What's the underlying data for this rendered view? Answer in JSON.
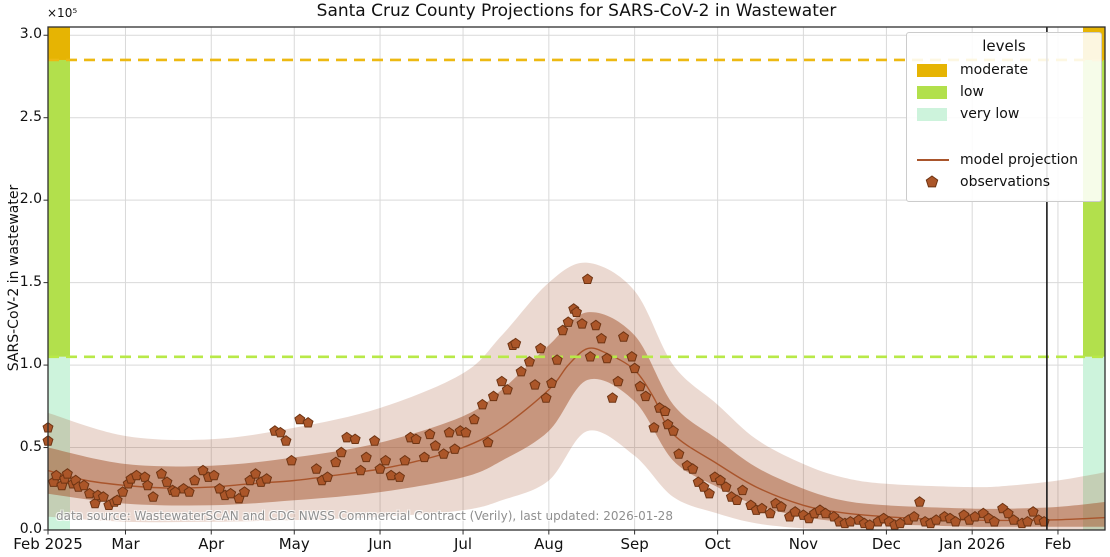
{
  "colors": {
    "moderate": "#e6b403",
    "low": "#b2e04c",
    "very_low": "#cdf3dc",
    "threshold_moderate": "#edb912",
    "threshold_low": "#b8e948",
    "model_line": "#a9552c",
    "marker": "#ab5629",
    "marker_edge": "#6e3413",
    "band_inner": "rgba(164,84,44,0.50)",
    "band_outer": "rgba(164,84,44,0.22)",
    "grid": "#d9d9d9",
    "spine": "#2e2e2e",
    "today_line": "#1a1a1a",
    "source_text": "#8f8f8f",
    "legend_border": "#cccccc"
  },
  "chart_data": {
    "type": "line",
    "title": "Santa Cruz County Projections for SARS-CoV-2 in Wastewater",
    "ylabel": "SARS-CoV-2 in wastewater",
    "y_offset_text": "×10⁵",
    "y_multiplier": 100000,
    "ylim": [
      0,
      3.05
    ],
    "grid": true,
    "x_domain": [
      "2025-02-01",
      "2026-02-18"
    ],
    "x_ticks": [
      {
        "date": "2025-02-01",
        "label": "Feb 2025"
      },
      {
        "date": "2025-03-01",
        "label": "Mar"
      },
      {
        "date": "2025-04-01",
        "label": "Apr"
      },
      {
        "date": "2025-05-01",
        "label": "May"
      },
      {
        "date": "2025-06-01",
        "label": "Jun"
      },
      {
        "date": "2025-07-01",
        "label": "Jul"
      },
      {
        "date": "2025-08-01",
        "label": "Aug"
      },
      {
        "date": "2025-09-01",
        "label": "Sep"
      },
      {
        "date": "2025-10-01",
        "label": "Oct"
      },
      {
        "date": "2025-11-01",
        "label": "Nov"
      },
      {
        "date": "2025-12-01",
        "label": "Dec"
      },
      {
        "date": "2026-01-01",
        "label": "Jan 2026"
      },
      {
        "date": "2026-02-01",
        "label": "Feb"
      }
    ],
    "y_ticks": [
      {
        "value": 0.0,
        "label": "0.0"
      },
      {
        "value": 0.5,
        "label": "0.5"
      },
      {
        "value": 1.0,
        "label": "1.0"
      },
      {
        "value": 1.5,
        "label": "1.5"
      },
      {
        "value": 2.0,
        "label": "2.0"
      },
      {
        "value": 2.5,
        "label": "2.5"
      },
      {
        "value": 3.0,
        "label": "3.0"
      }
    ],
    "levels": [
      {
        "name": "moderate",
        "from": 2.85,
        "to": 3.05,
        "color_key": "moderate"
      },
      {
        "name": "low",
        "from": 1.05,
        "to": 2.85,
        "color_key": "low"
      },
      {
        "name": "very low",
        "from": 0.0,
        "to": 1.05,
        "color_key": "very_low"
      }
    ],
    "thresholds": [
      {
        "name": "moderate-threshold",
        "value": 2.85,
        "color_key": "threshold_moderate"
      },
      {
        "name": "low-threshold",
        "value": 1.05,
        "color_key": "threshold_low"
      }
    ],
    "today_line": {
      "date": "2026-01-28"
    },
    "model_projection": {
      "dates": [
        "2025-02-01",
        "2025-02-15",
        "2025-03-01",
        "2025-03-15",
        "2025-04-01",
        "2025-04-15",
        "2025-05-01",
        "2025-05-15",
        "2025-06-01",
        "2025-06-15",
        "2025-07-01",
        "2025-07-15",
        "2025-08-01",
        "2025-08-08",
        "2025-08-15",
        "2025-08-22",
        "2025-09-01",
        "2025-09-08",
        "2025-09-15",
        "2025-10-01",
        "2025-10-15",
        "2025-11-01",
        "2025-11-15",
        "2025-12-01",
        "2025-12-15",
        "2026-01-01",
        "2026-01-15",
        "2026-02-01",
        "2026-02-18"
      ],
      "values": [
        0.36,
        0.3,
        0.27,
        0.255,
        0.26,
        0.28,
        0.3,
        0.33,
        0.37,
        0.42,
        0.5,
        0.62,
        0.85,
        1.0,
        1.1,
        1.07,
        0.97,
        0.8,
        0.58,
        0.4,
        0.26,
        0.15,
        0.105,
        0.08,
        0.068,
        0.06,
        0.058,
        0.062,
        0.075
      ]
    },
    "bands": {
      "dates": [
        "2025-02-01",
        "2025-03-01",
        "2025-04-01",
        "2025-05-01",
        "2025-06-01",
        "2025-07-01",
        "2025-07-15",
        "2025-08-01",
        "2025-08-15",
        "2025-09-01",
        "2025-09-15",
        "2025-10-01",
        "2025-10-15",
        "2025-11-01",
        "2025-11-15",
        "2025-12-01",
        "2026-01-01",
        "2026-01-15",
        "2026-02-01",
        "2026-02-18"
      ],
      "inner_hi": [
        0.5,
        0.4,
        0.39,
        0.44,
        0.53,
        0.69,
        0.85,
        1.12,
        1.32,
        1.18,
        0.76,
        0.55,
        0.38,
        0.25,
        0.18,
        0.15,
        0.13,
        0.13,
        0.14,
        0.17
      ],
      "inner_lo": [
        0.22,
        0.16,
        0.15,
        0.18,
        0.23,
        0.32,
        0.42,
        0.6,
        0.91,
        0.78,
        0.42,
        0.26,
        0.15,
        0.08,
        0.05,
        0.035,
        0.02,
        0.02,
        0.02,
        0.02
      ],
      "outer_hi": [
        0.71,
        0.57,
        0.55,
        0.62,
        0.74,
        0.95,
        1.18,
        1.5,
        1.62,
        1.45,
        1.0,
        0.76,
        0.55,
        0.4,
        0.32,
        0.28,
        0.26,
        0.27,
        0.3,
        0.35
      ],
      "outer_lo": [
        0.08,
        0.05,
        0.05,
        0.06,
        0.08,
        0.12,
        0.18,
        0.3,
        0.6,
        0.45,
        0.2,
        0.1,
        0.04,
        0.01,
        0.005,
        0.0,
        0.0,
        0.0,
        0.0,
        0.0
      ]
    },
    "observations": [
      [
        "2025-02-01",
        0.62
      ],
      [
        "2025-02-01",
        0.54
      ],
      [
        "2025-02-03",
        0.29
      ],
      [
        "2025-02-04",
        0.33
      ],
      [
        "2025-02-06",
        0.27
      ],
      [
        "2025-02-07",
        0.31
      ],
      [
        "2025-02-08",
        0.34
      ],
      [
        "2025-02-10",
        0.28
      ],
      [
        "2025-02-11",
        0.3
      ],
      [
        "2025-02-12",
        0.26
      ],
      [
        "2025-02-14",
        0.27
      ],
      [
        "2025-02-16",
        0.22
      ],
      [
        "2025-02-18",
        0.16
      ],
      [
        "2025-02-19",
        0.21
      ],
      [
        "2025-02-21",
        0.2
      ],
      [
        "2025-02-23",
        0.15
      ],
      [
        "2025-02-25",
        0.17
      ],
      [
        "2025-02-26",
        0.18
      ],
      [
        "2025-02-28",
        0.23
      ],
      [
        "2025-03-02",
        0.28
      ],
      [
        "2025-03-03",
        0.31
      ],
      [
        "2025-03-05",
        0.33
      ],
      [
        "2025-03-08",
        0.32
      ],
      [
        "2025-03-09",
        0.27
      ],
      [
        "2025-03-11",
        0.2
      ],
      [
        "2025-03-14",
        0.34
      ],
      [
        "2025-03-16",
        0.29
      ],
      [
        "2025-03-18",
        0.24
      ],
      [
        "2025-03-19",
        0.23
      ],
      [
        "2025-03-22",
        0.25
      ],
      [
        "2025-03-24",
        0.23
      ],
      [
        "2025-03-26",
        0.3
      ],
      [
        "2025-03-29",
        0.36
      ],
      [
        "2025-03-31",
        0.32
      ],
      [
        "2025-04-02",
        0.33
      ],
      [
        "2025-04-04",
        0.25
      ],
      [
        "2025-04-06",
        0.21
      ],
      [
        "2025-04-08",
        0.22
      ],
      [
        "2025-04-11",
        0.19
      ],
      [
        "2025-04-13",
        0.23
      ],
      [
        "2025-04-15",
        0.3
      ],
      [
        "2025-04-17",
        0.34
      ],
      [
        "2025-04-19",
        0.29
      ],
      [
        "2025-04-21",
        0.31
      ],
      [
        "2025-04-24",
        0.6
      ],
      [
        "2025-04-26",
        0.59
      ],
      [
        "2025-04-28",
        0.54
      ],
      [
        "2025-04-30",
        0.42
      ],
      [
        "2025-05-03",
        0.67
      ],
      [
        "2025-05-06",
        0.65
      ],
      [
        "2025-05-09",
        0.37
      ],
      [
        "2025-05-11",
        0.3
      ],
      [
        "2025-05-13",
        0.32
      ],
      [
        "2025-05-16",
        0.41
      ],
      [
        "2025-05-18",
        0.47
      ],
      [
        "2025-05-20",
        0.56
      ],
      [
        "2025-05-23",
        0.55
      ],
      [
        "2025-05-25",
        0.36
      ],
      [
        "2025-05-27",
        0.44
      ],
      [
        "2025-05-30",
        0.54
      ],
      [
        "2025-06-01",
        0.37
      ],
      [
        "2025-06-03",
        0.42
      ],
      [
        "2025-06-05",
        0.33
      ],
      [
        "2025-06-08",
        0.32
      ],
      [
        "2025-06-10",
        0.42
      ],
      [
        "2025-06-12",
        0.56
      ],
      [
        "2025-06-14",
        0.55
      ],
      [
        "2025-06-17",
        0.44
      ],
      [
        "2025-06-19",
        0.58
      ],
      [
        "2025-06-21",
        0.51
      ],
      [
        "2025-06-24",
        0.46
      ],
      [
        "2025-06-26",
        0.59
      ],
      [
        "2025-06-28",
        0.49
      ],
      [
        "2025-06-30",
        0.6
      ],
      [
        "2025-07-02",
        0.59
      ],
      [
        "2025-07-05",
        0.67
      ],
      [
        "2025-07-08",
        0.76
      ],
      [
        "2025-07-10",
        0.53
      ],
      [
        "2025-07-12",
        0.81
      ],
      [
        "2025-07-15",
        0.9
      ],
      [
        "2025-07-17",
        0.85
      ],
      [
        "2025-07-19",
        1.12
      ],
      [
        "2025-07-20",
        1.13
      ],
      [
        "2025-07-22",
        0.96
      ],
      [
        "2025-07-25",
        1.02
      ],
      [
        "2025-07-27",
        0.88
      ],
      [
        "2025-07-29",
        1.1
      ],
      [
        "2025-07-31",
        0.8
      ],
      [
        "2025-08-02",
        0.89
      ],
      [
        "2025-08-04",
        1.03
      ],
      [
        "2025-08-06",
        1.21
      ],
      [
        "2025-08-08",
        1.26
      ],
      [
        "2025-08-10",
        1.34
      ],
      [
        "2025-08-11",
        1.32
      ],
      [
        "2025-08-13",
        1.25
      ],
      [
        "2025-08-15",
        1.52
      ],
      [
        "2025-08-16",
        1.05
      ],
      [
        "2025-08-18",
        1.24
      ],
      [
        "2025-08-20",
        1.16
      ],
      [
        "2025-08-22",
        1.04
      ],
      [
        "2025-08-24",
        0.8
      ],
      [
        "2025-08-26",
        0.9
      ],
      [
        "2025-08-28",
        1.17
      ],
      [
        "2025-08-31",
        1.05
      ],
      [
        "2025-09-01",
        0.98
      ],
      [
        "2025-09-03",
        0.87
      ],
      [
        "2025-09-05",
        0.81
      ],
      [
        "2025-09-08",
        0.62
      ],
      [
        "2025-09-10",
        0.74
      ],
      [
        "2025-09-12",
        0.72
      ],
      [
        "2025-09-13",
        0.64
      ],
      [
        "2025-09-15",
        0.6
      ],
      [
        "2025-09-17",
        0.46
      ],
      [
        "2025-09-20",
        0.39
      ],
      [
        "2025-09-22",
        0.37
      ],
      [
        "2025-09-24",
        0.29
      ],
      [
        "2025-09-26",
        0.26
      ],
      [
        "2025-09-28",
        0.22
      ],
      [
        "2025-09-30",
        0.32
      ],
      [
        "2025-10-02",
        0.3
      ],
      [
        "2025-10-04",
        0.26
      ],
      [
        "2025-10-06",
        0.2
      ],
      [
        "2025-10-08",
        0.18
      ],
      [
        "2025-10-10",
        0.24
      ],
      [
        "2025-10-13",
        0.15
      ],
      [
        "2025-10-15",
        0.12
      ],
      [
        "2025-10-17",
        0.13
      ],
      [
        "2025-10-20",
        0.1
      ],
      [
        "2025-10-22",
        0.16
      ],
      [
        "2025-10-24",
        0.14
      ],
      [
        "2025-10-27",
        0.08
      ],
      [
        "2025-10-29",
        0.11
      ],
      [
        "2025-11-01",
        0.09
      ],
      [
        "2025-11-03",
        0.07
      ],
      [
        "2025-11-05",
        0.1
      ],
      [
        "2025-11-07",
        0.12
      ],
      [
        "2025-11-09",
        0.1
      ],
      [
        "2025-11-12",
        0.08
      ],
      [
        "2025-11-14",
        0.05
      ],
      [
        "2025-11-16",
        0.04
      ],
      [
        "2025-11-18",
        0.05
      ],
      [
        "2025-11-21",
        0.06
      ],
      [
        "2025-11-23",
        0.04
      ],
      [
        "2025-11-25",
        0.03
      ],
      [
        "2025-11-28",
        0.05
      ],
      [
        "2025-11-30",
        0.07
      ],
      [
        "2025-12-02",
        0.05
      ],
      [
        "2025-12-04",
        0.03
      ],
      [
        "2025-12-06",
        0.04
      ],
      [
        "2025-12-09",
        0.06
      ],
      [
        "2025-12-11",
        0.08
      ],
      [
        "2025-12-13",
        0.17
      ],
      [
        "2025-12-15",
        0.05
      ],
      [
        "2025-12-17",
        0.04
      ],
      [
        "2025-12-19",
        0.06
      ],
      [
        "2025-12-22",
        0.08
      ],
      [
        "2025-12-24",
        0.07
      ],
      [
        "2025-12-26",
        0.05
      ],
      [
        "2025-12-29",
        0.09
      ],
      [
        "2025-12-31",
        0.06
      ],
      [
        "2026-01-02",
        0.08
      ],
      [
        "2026-01-05",
        0.1
      ],
      [
        "2026-01-07",
        0.07
      ],
      [
        "2026-01-09",
        0.05
      ],
      [
        "2026-01-12",
        0.13
      ],
      [
        "2026-01-14",
        0.1
      ],
      [
        "2026-01-16",
        0.06
      ],
      [
        "2026-01-19",
        0.04
      ],
      [
        "2026-01-21",
        0.05
      ],
      [
        "2026-01-23",
        0.11
      ],
      [
        "2026-01-25",
        0.06
      ],
      [
        "2026-01-27",
        0.05
      ]
    ],
    "legend": {
      "title": "levels",
      "items": [
        {
          "label": "moderate"
        },
        {
          "label": "low"
        },
        {
          "label": "very low"
        },
        {
          "label": "model projection"
        },
        {
          "label": "observations"
        }
      ]
    },
    "source_note": "data source: WastewaterSCAN and CDC NWSS Commercial Contract (Verily), last updated: 2026-01-28"
  }
}
